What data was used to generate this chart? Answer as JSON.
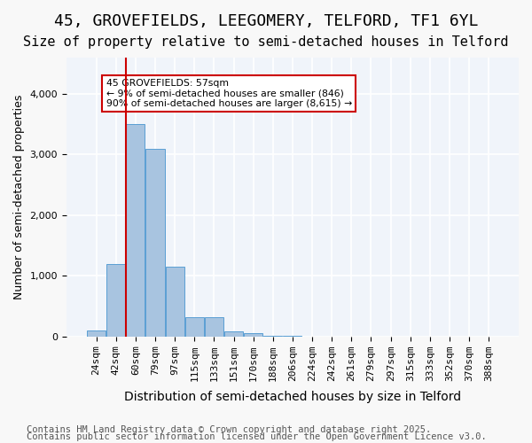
{
  "title1": "45, GROVEFIELDS, LEEGOMERY, TELFORD, TF1 6YL",
  "title2": "Size of property relative to semi-detached houses in Telford",
  "xlabel": "Distribution of semi-detached houses by size in Telford",
  "ylabel": "Number of semi-detached properties",
  "categories": [
    "24sqm",
    "42sqm",
    "60sqm",
    "79sqm",
    "97sqm",
    "115sqm",
    "133sqm",
    "151sqm",
    "170sqm",
    "188sqm",
    "206sqm",
    "224sqm",
    "242sqm",
    "261sqm",
    "279sqm",
    "297sqm",
    "315sqm",
    "333sqm",
    "352sqm",
    "370sqm",
    "388sqm"
  ],
  "values": [
    100,
    1200,
    3500,
    3100,
    1150,
    310,
    310,
    90,
    55,
    15,
    5,
    2,
    1,
    0,
    0,
    0,
    0,
    0,
    0,
    0,
    0
  ],
  "bar_color": "#a8c4e0",
  "bar_edge_color": "#5a9fd4",
  "property_line_x": 1,
  "annotation_title": "45 GROVEFIELDS: 57sqm",
  "annotation_line1": "← 9% of semi-detached houses are smaller (846)",
  "annotation_line2": "90% of semi-detached houses are larger (8,615) →",
  "annotation_box_color": "#ffffff",
  "annotation_box_edge": "#cc0000",
  "vertical_line_color": "#cc0000",
  "ylim": [
    0,
    4600
  ],
  "footer1": "Contains HM Land Registry data © Crown copyright and database right 2025.",
  "footer2": "Contains public sector information licensed under the Open Government Licence v3.0.",
  "background_color": "#f0f4fa",
  "grid_color": "#ffffff",
  "title1_fontsize": 13,
  "title2_fontsize": 11,
  "xlabel_fontsize": 10,
  "ylabel_fontsize": 9,
  "tick_fontsize": 8,
  "footer_fontsize": 7.5
}
